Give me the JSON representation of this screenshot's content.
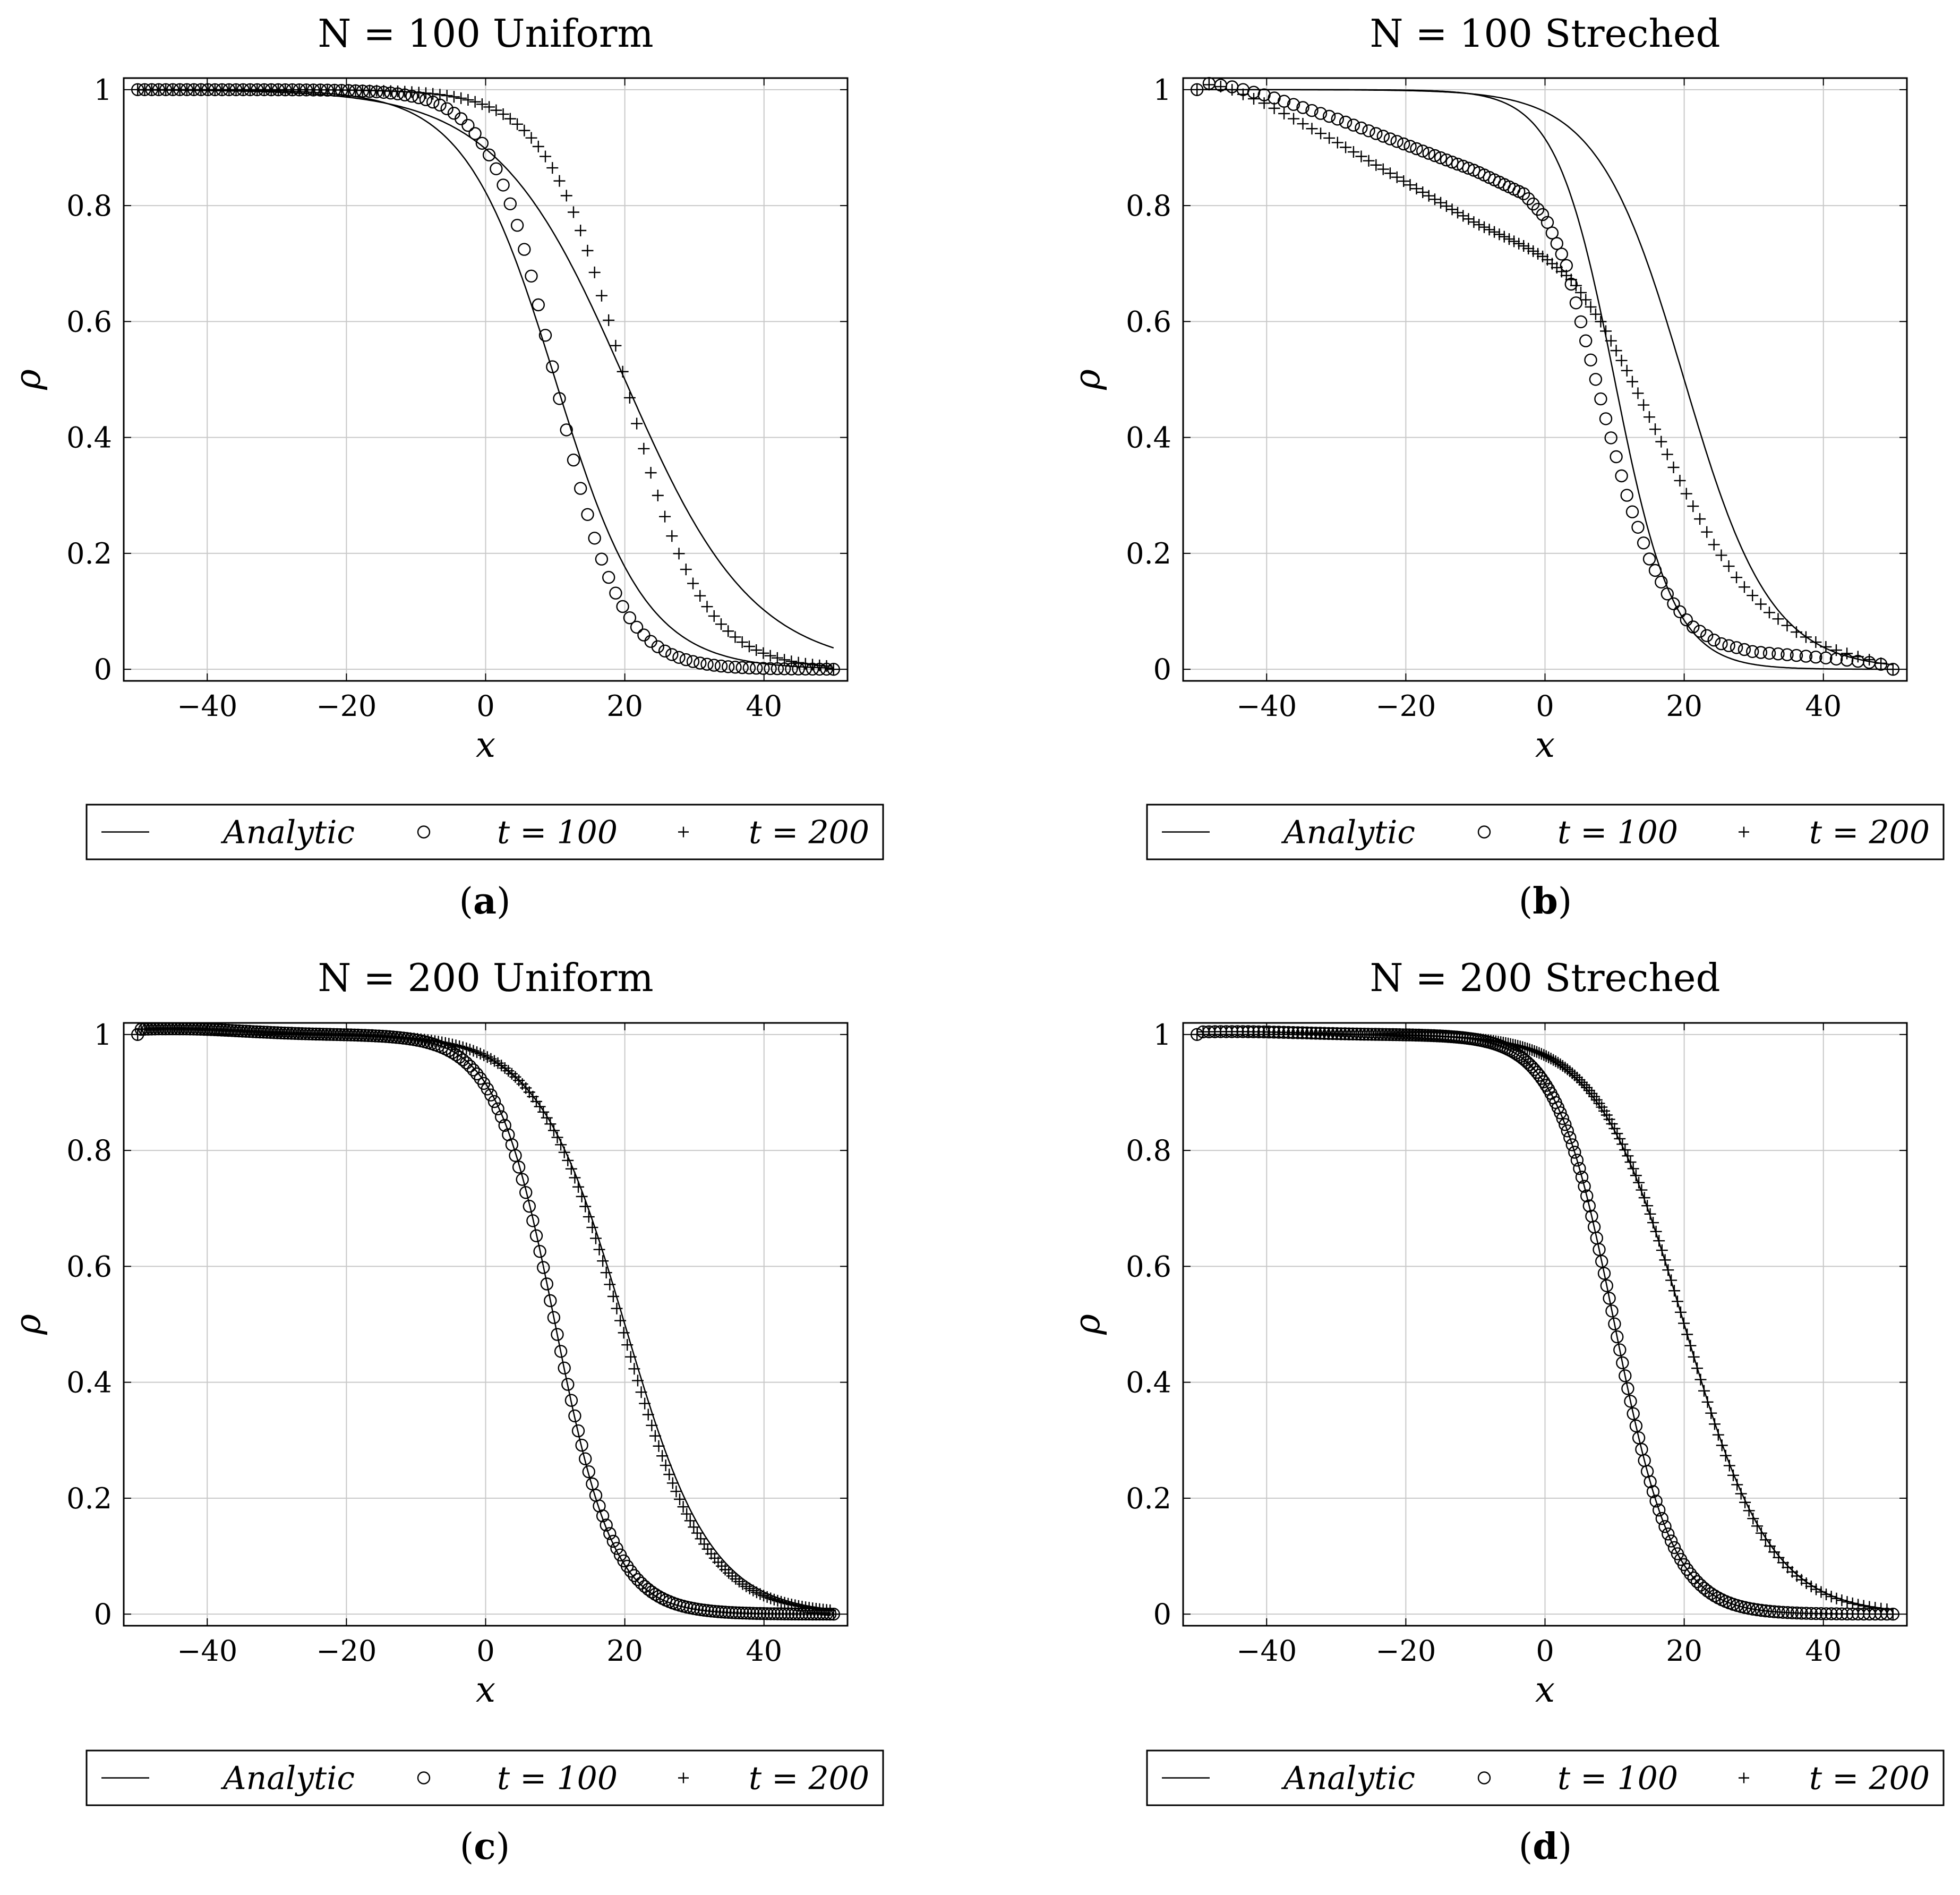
{
  "figure": {
    "legend": {
      "analytic_label": "Analytic",
      "t100_label": "t = 100",
      "t200_label": "t = 200"
    }
  },
  "chart_data": [
    {
      "type": "scatter",
      "id": "a",
      "title": "N = 100 Uniform",
      "caption_letter": "a",
      "xlabel": "x",
      "ylabel": "ρ",
      "xlim": [
        -52,
        52
      ],
      "ylim": [
        -0.02,
        1.02
      ],
      "xticks": [
        -40,
        -20,
        0,
        20,
        40
      ],
      "xtick_labels": [
        "−40",
        "−20",
        "0",
        "20",
        "40"
      ],
      "yticks": [
        0,
        0.2,
        0.4,
        0.6,
        0.8,
        1
      ],
      "ytick_labels": [
        "0",
        "0.2",
        "0.4",
        "0.6",
        "0.8",
        "1"
      ],
      "grid": true,
      "legend_position": "below",
      "analytic": [
        {
          "x0": 10,
          "w": 6.5
        },
        {
          "x0": 20,
          "w": 9.2
        }
      ],
      "series": [
        {
          "name": "t = 100",
          "marker": "circle",
          "n": 100,
          "grid": "uniform",
          "x0": 10,
          "w": 4.6,
          "overshoot": 0,
          "dip": 0
        },
        {
          "name": "t = 200",
          "marker": "plus",
          "n": 100,
          "grid": "uniform",
          "x0": 20,
          "w": 5.6,
          "overshoot": 0,
          "dip": 0
        }
      ]
    },
    {
      "type": "scatter",
      "id": "b",
      "title": "N = 100 Streched",
      "caption_letter": "b",
      "xlabel": "x",
      "ylabel": "ρ",
      "xlim": [
        -52,
        52
      ],
      "ylim": [
        -0.02,
        1.02
      ],
      "xticks": [
        -40,
        -20,
        0,
        20,
        40
      ],
      "xtick_labels": [
        "−40",
        "−20",
        "0",
        "20",
        "40"
      ],
      "yticks": [
        0,
        0.2,
        0.4,
        0.6,
        0.8,
        1
      ],
      "ytick_labels": [
        "0",
        "0.2",
        "0.4",
        "0.6",
        "0.8",
        "1"
      ],
      "grid": true,
      "legend_position": "below",
      "analytic": [
        {
          "x0": 10,
          "w": 4.2
        },
        {
          "x0": 20,
          "w": 6.2
        }
      ],
      "series_points": [
        {
          "name": "t = 100",
          "marker": "circle",
          "grid": "stretched",
          "n": 100,
          "profile": [
            [
              -50,
              1.0
            ],
            [
              -49,
              1.012
            ],
            [
              -45,
              1.005
            ],
            [
              -40,
              0.99
            ],
            [
              -30,
              0.95
            ],
            [
              -20,
              0.905
            ],
            [
              -10,
              0.86
            ],
            [
              -3,
              0.82
            ],
            [
              0,
              0.78
            ],
            [
              3,
              0.7
            ],
            [
              6,
              0.56
            ],
            [
              9,
              0.42
            ],
            [
              12,
              0.29
            ],
            [
              15,
              0.19
            ],
            [
              18,
              0.12
            ],
            [
              21,
              0.075
            ],
            [
              25,
              0.045
            ],
            [
              30,
              0.03
            ],
            [
              40,
              0.02
            ],
            [
              48,
              0.01
            ],
            [
              50,
              0.0
            ]
          ]
        },
        {
          "name": "t = 200",
          "marker": "plus",
          "grid": "stretched",
          "n": 100,
          "profile": [
            [
              -50,
              1.0
            ],
            [
              -48,
              1.01
            ],
            [
              -45,
              1.0
            ],
            [
              -40,
              0.975
            ],
            [
              -30,
              0.91
            ],
            [
              -20,
              0.84
            ],
            [
              -10,
              0.77
            ],
            [
              -3,
              0.73
            ],
            [
              0,
              0.71
            ],
            [
              4,
              0.67
            ],
            [
              8,
              0.6
            ],
            [
              12,
              0.51
            ],
            [
              16,
              0.41
            ],
            [
              20,
              0.31
            ],
            [
              24,
              0.22
            ],
            [
              28,
              0.15
            ],
            [
              32,
              0.1
            ],
            [
              36,
              0.065
            ],
            [
              40,
              0.04
            ],
            [
              44,
              0.025
            ],
            [
              48,
              0.012
            ],
            [
              50,
              0.0
            ]
          ]
        }
      ]
    },
    {
      "type": "scatter",
      "id": "c",
      "title": "N = 200 Uniform",
      "caption_letter": "c",
      "xlabel": "x",
      "ylabel": "ρ",
      "xlim": [
        -52,
        52
      ],
      "ylim": [
        -0.02,
        1.02
      ],
      "xticks": [
        -40,
        -20,
        0,
        20,
        40
      ],
      "xtick_labels": [
        "−40",
        "−20",
        "0",
        "20",
        "40"
      ],
      "yticks": [
        0,
        0.2,
        0.4,
        0.6,
        0.8,
        1
      ],
      "ytick_labels": [
        "0",
        "0.2",
        "0.4",
        "0.6",
        "0.8",
        "1"
      ],
      "grid": true,
      "legend_position": "below",
      "analytic": [
        {
          "x0": 10,
          "w": 4.2
        },
        {
          "x0": 20,
          "w": 6.2
        }
      ],
      "series": [
        {
          "name": "t = 100",
          "marker": "circle",
          "n": 200,
          "grid": "uniform",
          "x0": 10,
          "w": 4.3,
          "overshoot": 0.01,
          "dip": 0.012
        },
        {
          "name": "t = 200",
          "marker": "plus",
          "n": 200,
          "grid": "uniform",
          "x0": 19.5,
          "w": 6.0,
          "overshoot": 0.01,
          "dip": 0.008
        }
      ]
    },
    {
      "type": "scatter",
      "id": "d",
      "title": "N = 200 Streched",
      "caption_letter": "d",
      "xlabel": "x",
      "ylabel": "ρ",
      "xlim": [
        -52,
        52
      ],
      "ylim": [
        -0.02,
        1.02
      ],
      "xticks": [
        -40,
        -20,
        0,
        20,
        40
      ],
      "xtick_labels": [
        "−40",
        "−20",
        "0",
        "20",
        "40"
      ],
      "yticks": [
        0,
        0.2,
        0.4,
        0.6,
        0.8,
        1
      ],
      "ytick_labels": [
        "0",
        "0.2",
        "0.4",
        "0.6",
        "0.8",
        "1"
      ],
      "grid": true,
      "legend_position": "below",
      "analytic": [
        {
          "x0": 10,
          "w": 4.2
        },
        {
          "x0": 20,
          "w": 6.2
        }
      ],
      "series": [
        {
          "name": "t = 100",
          "marker": "circle",
          "n": 200,
          "grid": "stretched",
          "x0": 10,
          "w": 4.2,
          "overshoot": 0.005,
          "dip": 0.006
        },
        {
          "name": "t = 200",
          "marker": "plus",
          "n": 200,
          "grid": "stretched",
          "x0": 20,
          "w": 6.1,
          "overshoot": 0.005,
          "dip": 0.006
        }
      ]
    }
  ]
}
